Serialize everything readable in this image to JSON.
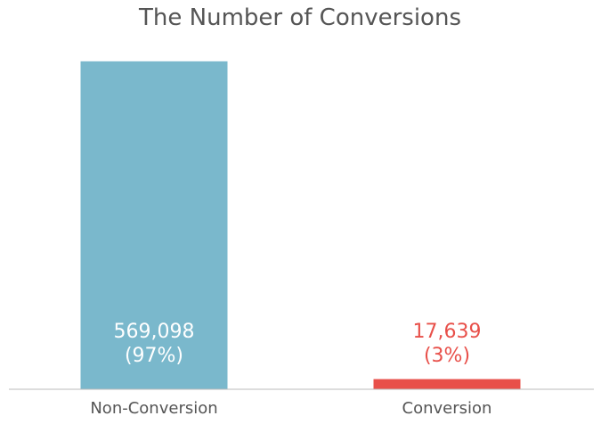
{
  "chart_data": {
    "type": "bar",
    "title": "The Number of Conversions",
    "xlabel": "",
    "ylabel": "",
    "categories": [
      "Non-Conversion",
      "Conversion"
    ],
    "values": [
      569098,
      17639
    ],
    "value_labels": [
      "569,098",
      "17,639"
    ],
    "percent_labels": [
      "(97%)",
      "(3%)"
    ],
    "colors": [
      "#7ab8cc",
      "#e8504a"
    ],
    "label_colors": [
      "#ffffff",
      "#e8504a"
    ],
    "ylim": [
      0,
      600000
    ],
    "grid": false,
    "legend": "none",
    "axis_color": "#bbbbbb"
  }
}
